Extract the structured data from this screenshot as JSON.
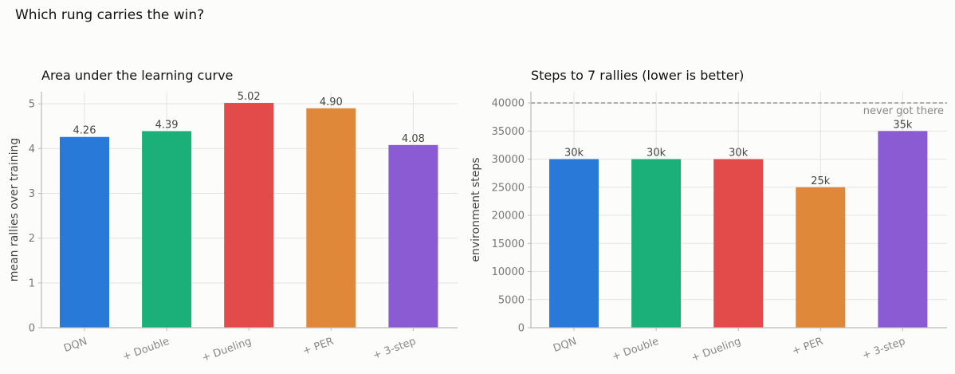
{
  "figure_title": "Which rung carries the win?",
  "chart_data": [
    {
      "type": "bar",
      "title": "Area under the learning curve",
      "xlabel": "",
      "ylabel": "mean rallies over training",
      "categories": [
        "DQN",
        "+ Double",
        "+ Dueling",
        "+ PER",
        "+ 3-step"
      ],
      "values": [
        4.26,
        4.39,
        5.02,
        4.9,
        4.08
      ],
      "value_labels": [
        "4.26",
        "4.39",
        "5.02",
        "4.90",
        "4.08"
      ],
      "colors": [
        "#2979d9",
        "#1bb07a",
        "#e34b4b",
        "#e0883a",
        "#8a5bd3"
      ],
      "ylim": [
        0,
        5.27
      ],
      "yticks": [
        0,
        1,
        2,
        3,
        4,
        5
      ],
      "grid": true
    },
    {
      "type": "bar",
      "title": "Steps to 7 rallies (lower is better)",
      "xlabel": "",
      "ylabel": "environment steps",
      "categories": [
        "DQN",
        "+ Double",
        "+ Dueling",
        "+ PER",
        "+ 3-step"
      ],
      "values": [
        30000,
        30000,
        30000,
        25000,
        35000
      ],
      "value_labels": [
        "30k",
        "30k",
        "30k",
        "25k",
        "35k"
      ],
      "colors": [
        "#2979d9",
        "#1bb07a",
        "#e34b4b",
        "#e0883a",
        "#8a5bd3"
      ],
      "ylim": [
        0,
        42000
      ],
      "yticks": [
        0,
        5000,
        10000,
        15000,
        20000,
        25000,
        30000,
        35000,
        40000
      ],
      "grid": true,
      "reference_line": {
        "y": 40000,
        "style": "dashed",
        "label": "never got there"
      }
    }
  ]
}
